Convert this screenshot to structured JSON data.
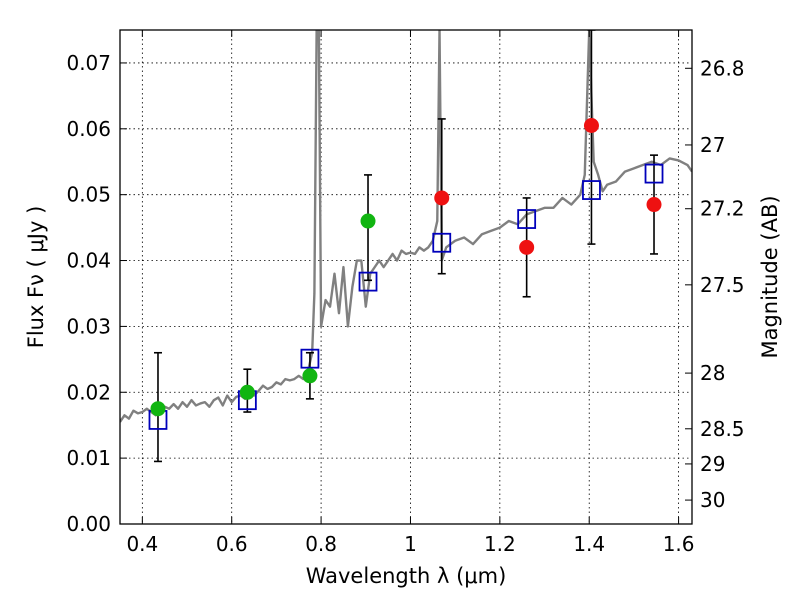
{
  "chart_data": {
    "type": "scatter",
    "xlabel": "Wavelength  λ (μm)",
    "ylabel": "Flux  Fν  ( μJy )",
    "y2label": "Magnitude (AB)",
    "xlim": [
      0.35,
      1.63
    ],
    "ylim": [
      0.0,
      0.075
    ],
    "grid": true,
    "x_ticks": [
      {
        "value": 0.4,
        "label": "0.4"
      },
      {
        "value": 0.6,
        "label": "0.6"
      },
      {
        "value": 0.8,
        "label": "0.8"
      },
      {
        "value": 1.0,
        "label": "1"
      },
      {
        "value": 1.2,
        "label": "1.2"
      },
      {
        "value": 1.4,
        "label": "1.4"
      },
      {
        "value": 1.6,
        "label": "1.6"
      }
    ],
    "y_ticks": [
      {
        "value": 0.0,
        "label": "0.00"
      },
      {
        "value": 0.01,
        "label": "0.01"
      },
      {
        "value": 0.02,
        "label": "0.02"
      },
      {
        "value": 0.03,
        "label": "0.03"
      },
      {
        "value": 0.04,
        "label": "0.04"
      },
      {
        "value": 0.05,
        "label": "0.05"
      },
      {
        "value": 0.06,
        "label": "0.06"
      },
      {
        "value": 0.07,
        "label": "0.07"
      }
    ],
    "y2_ticks": [
      {
        "value": 26.8,
        "label": "26.8"
      },
      {
        "value": 27.0,
        "label": "27"
      },
      {
        "value": 27.2,
        "label": "27.2"
      },
      {
        "value": 27.5,
        "label": "27.5"
      },
      {
        "value": 28.0,
        "label": "28"
      },
      {
        "value": 28.5,
        "label": "28.5"
      },
      {
        "value": 29.0,
        "label": "29"
      },
      {
        "value": 30.0,
        "label": "30"
      }
    ],
    "colors": {
      "spectrum": "#808080",
      "model": "#0000bb",
      "green": "#11b511",
      "red": "#ee1111",
      "errorbar": "#000000"
    },
    "spectrum": {
      "x": [
        0.35,
        0.36,
        0.37,
        0.38,
        0.39,
        0.4,
        0.41,
        0.42,
        0.43,
        0.44,
        0.45,
        0.46,
        0.47,
        0.48,
        0.49,
        0.5,
        0.51,
        0.52,
        0.53,
        0.54,
        0.55,
        0.56,
        0.57,
        0.58,
        0.59,
        0.6,
        0.61,
        0.62,
        0.63,
        0.64,
        0.65,
        0.66,
        0.67,
        0.68,
        0.69,
        0.7,
        0.71,
        0.72,
        0.73,
        0.74,
        0.75,
        0.76,
        0.77,
        0.78,
        0.785,
        0.79,
        0.795,
        0.8,
        0.805,
        0.81,
        0.82,
        0.83,
        0.84,
        0.85,
        0.86,
        0.87,
        0.88,
        0.89,
        0.9,
        0.91,
        0.92,
        0.93,
        0.94,
        0.95,
        0.96,
        0.97,
        0.98,
        0.99,
        1.0,
        1.01,
        1.02,
        1.03,
        1.04,
        1.05,
        1.06,
        1.065,
        1.07,
        1.08,
        1.09,
        1.1,
        1.12,
        1.14,
        1.16,
        1.18,
        1.2,
        1.22,
        1.24,
        1.26,
        1.28,
        1.3,
        1.32,
        1.34,
        1.36,
        1.38,
        1.39,
        1.4,
        1.41,
        1.42,
        1.43,
        1.44,
        1.46,
        1.48,
        1.5,
        1.52,
        1.54,
        1.56,
        1.58,
        1.6,
        1.62,
        1.63
      ],
      "y": [
        0.0155,
        0.0165,
        0.016,
        0.0172,
        0.0168,
        0.017,
        0.0175,
        0.017,
        0.0165,
        0.0172,
        0.0178,
        0.0175,
        0.0182,
        0.0175,
        0.0185,
        0.0178,
        0.0188,
        0.018,
        0.0183,
        0.0185,
        0.0178,
        0.0188,
        0.0192,
        0.018,
        0.0195,
        0.0185,
        0.0193,
        0.0195,
        0.019,
        0.0198,
        0.0195,
        0.0202,
        0.021,
        0.0205,
        0.0208,
        0.0215,
        0.0212,
        0.022,
        0.0218,
        0.022,
        0.0225,
        0.022,
        0.023,
        0.026,
        0.035,
        0.075,
        0.075,
        0.03,
        0.032,
        0.034,
        0.033,
        0.038,
        0.032,
        0.039,
        0.03,
        0.036,
        0.04,
        0.04,
        0.033,
        0.038,
        0.039,
        0.04,
        0.039,
        0.04,
        0.041,
        0.04,
        0.0415,
        0.041,
        0.0412,
        0.041,
        0.042,
        0.0415,
        0.042,
        0.043,
        0.046,
        0.075,
        0.04,
        0.042,
        0.0425,
        0.043,
        0.0435,
        0.0425,
        0.044,
        0.0445,
        0.045,
        0.046,
        0.0455,
        0.047,
        0.0475,
        0.048,
        0.048,
        0.0495,
        0.0485,
        0.05,
        0.053,
        0.075,
        0.055,
        0.053,
        0.0505,
        0.0515,
        0.052,
        0.0535,
        0.054,
        0.0545,
        0.055,
        0.0545,
        0.0555,
        0.0552,
        0.0545,
        0.0535
      ]
    },
    "model": {
      "x": [
        0.435,
        0.635,
        0.775,
        0.905,
        1.07,
        1.26,
        1.405,
        1.545
      ],
      "y": [
        0.0158,
        0.0188,
        0.0251,
        0.0368,
        0.0427,
        0.0463,
        0.0507,
        0.0532
      ]
    },
    "observed": [
      {
        "x": 0.435,
        "y": 0.0175,
        "err_low": 0.0095,
        "err_high": 0.026,
        "color": "green"
      },
      {
        "x": 0.635,
        "y": 0.02,
        "err_low": 0.017,
        "err_high": 0.0235,
        "color": "green"
      },
      {
        "x": 0.775,
        "y": 0.0225,
        "err_low": 0.019,
        "err_high": 0.026,
        "color": "green"
      },
      {
        "x": 0.905,
        "y": 0.046,
        "err_low": 0.037,
        "err_high": 0.053,
        "color": "green"
      },
      {
        "x": 1.07,
        "y": 0.0495,
        "err_low": 0.038,
        "err_high": 0.0615,
        "color": "red"
      },
      {
        "x": 1.26,
        "y": 0.042,
        "err_low": 0.0345,
        "err_high": 0.0495,
        "color": "red"
      },
      {
        "x": 1.405,
        "y": 0.0605,
        "err_low": 0.0425,
        "err_high": 0.075,
        "color": "red"
      },
      {
        "x": 1.545,
        "y": 0.0485,
        "err_low": 0.041,
        "err_high": 0.056,
        "color": "red"
      }
    ]
  }
}
